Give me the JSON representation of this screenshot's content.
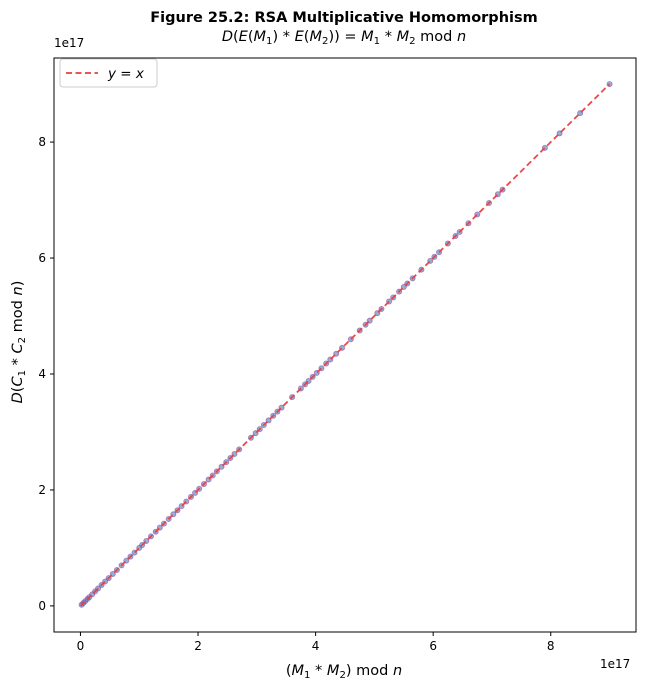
{
  "chart_data": {
    "type": "scatter",
    "title": "Figure 25.2: RSA Multiplicative Homomorphism",
    "subtitle_parts": [
      "D",
      "(",
      "E",
      "(",
      "M",
      "1",
      ")",
      " * ",
      "E",
      "(",
      "M",
      "2",
      ")) = ",
      "M",
      "1",
      " * ",
      "M",
      "2",
      " mod ",
      "n"
    ],
    "xlabel_parts": [
      "(",
      "M",
      "1",
      " * ",
      "M",
      "2",
      ") mod ",
      "n"
    ],
    "ylabel_parts": [
      "D",
      "(",
      "C",
      "1",
      " * ",
      "C",
      "2",
      " mod ",
      "n",
      ")"
    ],
    "x_offset_label": "1e17",
    "y_offset_label": "1e17",
    "xlim": [
      -0.45,
      9.45
    ],
    "ylim": [
      -0.45,
      9.45
    ],
    "xticks": [
      0,
      2,
      4,
      6,
      8
    ],
    "yticks": [
      0,
      2,
      4,
      6,
      8
    ],
    "tick_labels_x": [
      "0",
      "2",
      "4",
      "6",
      "8"
    ],
    "tick_labels_y": [
      "0",
      "2",
      "4",
      "6",
      "8"
    ],
    "legend": {
      "label_var1": "y",
      "label_eq": " = ",
      "label_var2": "x",
      "location": "upper-left"
    },
    "reference_line": {
      "name": "y = x",
      "x": [
        0,
        9.0
      ],
      "y": [
        0,
        9.0
      ],
      "color": "#e8403f",
      "style": "dashed"
    },
    "point_color": "#4a78c2",
    "point_edge_color": "#8b3a8e",
    "points": [
      0.02,
      0.05,
      0.08,
      0.12,
      0.15,
      0.2,
      0.25,
      0.3,
      0.36,
      0.42,
      0.48,
      0.55,
      0.62,
      0.7,
      0.78,
      0.85,
      0.92,
      1.0,
      1.05,
      1.12,
      1.2,
      1.28,
      1.35,
      1.42,
      1.5,
      1.58,
      1.65,
      1.72,
      1.8,
      1.88,
      1.95,
      2.02,
      2.1,
      2.18,
      2.25,
      2.32,
      2.4,
      2.48,
      2.55,
      2.62,
      2.7,
      2.9,
      2.98,
      3.05,
      3.12,
      3.2,
      3.28,
      3.35,
      3.42,
      3.6,
      3.75,
      3.82,
      3.88,
      3.95,
      4.02,
      4.1,
      4.18,
      4.25,
      4.35,
      4.45,
      4.6,
      4.75,
      4.85,
      4.92,
      5.05,
      5.12,
      5.25,
      5.32,
      5.42,
      5.5,
      5.56,
      5.65,
      5.8,
      5.95,
      6.02,
      6.1,
      6.25,
      6.38,
      6.45,
      6.6,
      6.75,
      6.95,
      7.1,
      7.18,
      7.9,
      8.15,
      8.5,
      9.0
    ]
  }
}
